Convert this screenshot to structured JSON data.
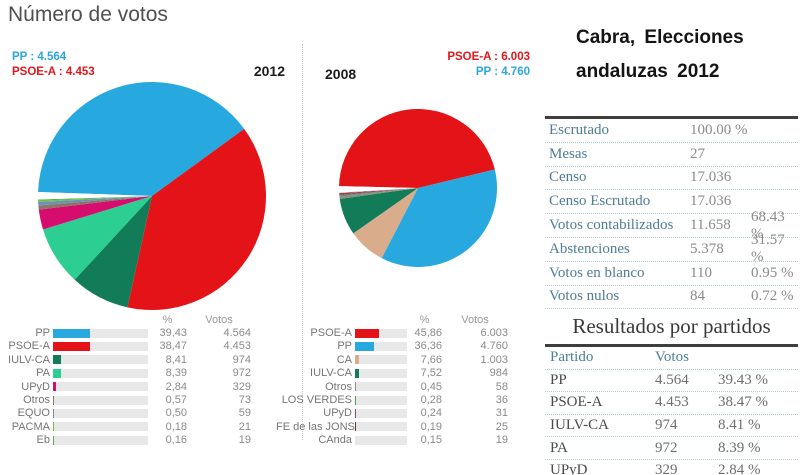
{
  "page_title": "Número de votos",
  "panel": {
    "title_line1": "Cabra, Elecciones",
    "title_line2": "andaluzas 2012",
    "stats": [
      {
        "label": "Escrutado",
        "value": "100.00 %",
        "pct": ""
      },
      {
        "label": "Mesas",
        "value": "27",
        "pct": ""
      },
      {
        "label": "Censo",
        "value": "17.036",
        "pct": ""
      },
      {
        "label": "Censo Escrutado",
        "value": "17.036",
        "pct": ""
      },
      {
        "label": "Votos contabilizados",
        "value": "11.658",
        "pct": "68.43 %"
      },
      {
        "label": "Abstenciones",
        "value": "5.378",
        "pct": "31.57 %"
      },
      {
        "label": "Votos en blanco",
        "value": "110",
        "pct": "0.95 %"
      },
      {
        "label": "Votos nulos",
        "value": "84",
        "pct": "0.72 %"
      }
    ],
    "results": {
      "heading": "Resultados por partidos",
      "col_party": "Partido",
      "col_votes": "Votos",
      "rows": [
        {
          "party": "PP",
          "votes": "4.564",
          "pct": "39.43 %"
        },
        {
          "party": "PSOE-A",
          "votes": "4.453",
          "pct": "38.47 %"
        },
        {
          "party": "IULV-CA",
          "votes": "974",
          "pct": "8.41 %"
        },
        {
          "party": "PA",
          "votes": "972",
          "pct": "8.39 %"
        },
        {
          "party": "UPyD",
          "votes": "329",
          "pct": "2.84 %"
        }
      ]
    }
  },
  "chart_data": [
    {
      "type": "pie",
      "year": "2012",
      "callouts": [
        {
          "text": "PP : 4.564",
          "color": "#2BA6DB"
        },
        {
          "text": "PSOE-A : 4.453",
          "color": "#E0161C"
        }
      ],
      "columns": {
        "pct": "%",
        "votes": "Votos"
      },
      "start_angle": 272,
      "filler_color": "#FFFFFF",
      "slices": [
        {
          "party": "PP",
          "pct": 39.43,
          "pct_str": "39,43",
          "votes": "4.564",
          "color": "#27A9E0"
        },
        {
          "party": "PSOE-A",
          "pct": 38.47,
          "pct_str": "38,47",
          "votes": "4.453",
          "color": "#E41317"
        },
        {
          "party": "IULV-CA",
          "pct": 8.41,
          "pct_str": "8,41",
          "votes": "974",
          "color": "#127C59"
        },
        {
          "party": "PA",
          "pct": 8.39,
          "pct_str": "8,39",
          "votes": "972",
          "color": "#2CCE92"
        },
        {
          "party": "UPyD",
          "pct": 2.84,
          "pct_str": "2,84",
          "votes": "329",
          "color": "#D60D6F"
        },
        {
          "party": "Otros",
          "pct": 0.57,
          "pct_str": "0,57",
          "votes": "73",
          "color": "#8A7568"
        },
        {
          "party": "EQUO",
          "pct": 0.5,
          "pct_str": "0,50",
          "votes": "59",
          "color": "#7090B8"
        },
        {
          "party": "PACMA",
          "pct": 0.18,
          "pct_str": "0,18",
          "votes": "21",
          "color": "#6FBF4F"
        },
        {
          "party": "Eb",
          "pct": 0.16,
          "pct_str": "0,16",
          "votes": "19",
          "color": "#49B83C"
        }
      ]
    },
    {
      "type": "pie",
      "year": "2008",
      "callouts": [
        {
          "text": "PSOE-A : 6.003",
          "color": "#E0161C"
        },
        {
          "text": "PP : 4.760",
          "color": "#2BA6DB"
        }
      ],
      "columns": {
        "pct": "%",
        "votes": "Votos"
      },
      "start_angle": 271.4,
      "filler_color": "#FFFFFF",
      "slices": [
        {
          "party": "PSOE-A",
          "pct": 45.86,
          "pct_str": "45,86",
          "votes": "6.003",
          "color": "#E41317"
        },
        {
          "party": "PP",
          "pct": 36.36,
          "pct_str": "36,36",
          "votes": "4.760",
          "color": "#27A9E0"
        },
        {
          "party": "CA",
          "pct": 7.66,
          "pct_str": "7,66",
          "votes": "1.003",
          "color": "#D9AC8C"
        },
        {
          "party": "IULV-CA",
          "pct": 7.52,
          "pct_str": "7,52",
          "votes": "984",
          "color": "#127C59"
        },
        {
          "party": "Otros",
          "pct": 0.45,
          "pct_str": "0,45",
          "votes": "58",
          "color": "#8D8D85"
        },
        {
          "party": "LOS VERDES",
          "pct": 0.28,
          "pct_str": "0,28",
          "votes": "36",
          "color": "#4CA83B"
        },
        {
          "party": "UPyD",
          "pct": 0.24,
          "pct_str": "0,24",
          "votes": "31",
          "color": "#B0359B"
        },
        {
          "party": "FE de las JONS",
          "pct": 0.19,
          "pct_str": "0,19",
          "votes": "25",
          "color": "#7A2E2E"
        },
        {
          "party": "CAnda",
          "pct": 0.15,
          "pct_str": "0,15",
          "votes": "19",
          "color": "#BBB3A9"
        }
      ]
    }
  ]
}
